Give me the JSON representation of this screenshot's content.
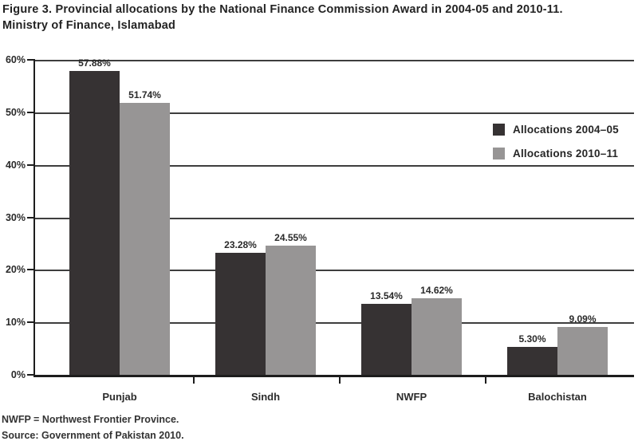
{
  "title": {
    "line1": "Figure 3. Provincial allocations by the National Finance Commission Award in 2004-05 and 2010-11.",
    "line2": "Ministry of Finance, Islamabad"
  },
  "chart_data": {
    "type": "bar",
    "title": "Figure 3. Provincial allocations by the National Finance Commission Award in 2004-05 and 2010-11. Ministry of Finance, Islamabad",
    "categories": [
      "Punjab",
      "Sindh",
      "NWFP",
      "Balochistan"
    ],
    "series": [
      {
        "name": "Allocations 2004–05",
        "color": "#363233",
        "values": [
          57.88,
          23.28,
          13.54,
          5.3
        ]
      },
      {
        "name": "Allocations 2010–11",
        "color": "#979595",
        "values": [
          51.74,
          24.55,
          14.62,
          9.09
        ]
      }
    ],
    "ylim": [
      0,
      60
    ],
    "y_ticks": [
      "0%",
      "10%",
      "20%",
      "30%",
      "40%",
      "50%",
      "60%"
    ],
    "grid": true,
    "legend_position": "inside-top-right",
    "data_label_suffix": "%",
    "xlabel": "",
    "ylabel": ""
  },
  "footnotes": {
    "note": "NWFP = Northwest Frontier Province.",
    "source": "Source: Government of Pakistan 2010."
  }
}
